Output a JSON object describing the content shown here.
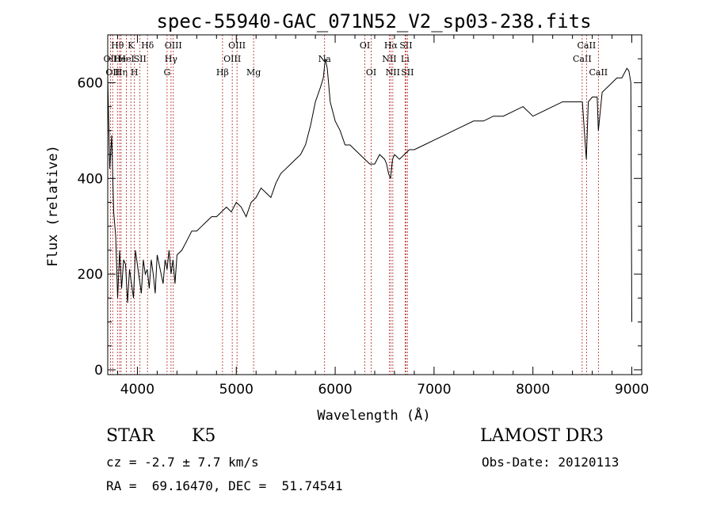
{
  "chart_data": {
    "type": "line",
    "title": "spec-55940-GAC_071N52_V2_sp03-238.fits",
    "xlabel": "Wavelength (Å)",
    "ylabel": "Flux (relative)",
    "xlim": [
      3700,
      9100
    ],
    "ylim": [
      -10,
      700
    ],
    "xticks": [
      4000,
      5000,
      6000,
      7000,
      8000,
      9000
    ],
    "yticks": [
      0,
      200,
      400,
      600
    ],
    "series": [
      {
        "name": "spectrum",
        "x": [
          3700,
          3720,
          3740,
          3760,
          3780,
          3800,
          3820,
          3840,
          3860,
          3880,
          3900,
          3920,
          3940,
          3960,
          3980,
          4000,
          4020,
          4040,
          4060,
          4080,
          4100,
          4120,
          4140,
          4160,
          4180,
          4200,
          4220,
          4240,
          4260,
          4280,
          4300,
          4320,
          4340,
          4360,
          4380,
          4400,
          4450,
          4500,
          4550,
          4600,
          4650,
          4700,
          4750,
          4800,
          4850,
          4900,
          4950,
          5000,
          5050,
          5100,
          5150,
          5200,
          5250,
          5300,
          5350,
          5400,
          5450,
          5500,
          5550,
          5600,
          5650,
          5700,
          5750,
          5800,
          5850,
          5880,
          5900,
          5920,
          5950,
          6000,
          6050,
          6100,
          6150,
          6200,
          6250,
          6300,
          6350,
          6400,
          6450,
          6500,
          6520,
          6540,
          6560,
          6580,
          6600,
          6650,
          6700,
          6750,
          6800,
          6900,
          7000,
          7100,
          7200,
          7300,
          7400,
          7500,
          7600,
          7700,
          7800,
          7900,
          8000,
          8100,
          8200,
          8300,
          8400,
          8500,
          8540,
          8560,
          8600,
          8650,
          8662,
          8700,
          8750,
          8800,
          8850,
          8900,
          8950,
          8970,
          8990,
          9000
        ],
        "y": [
          610,
          420,
          490,
          330,
          280,
          150,
          250,
          170,
          230,
          220,
          140,
          210,
          180,
          150,
          250,
          220,
          190,
          160,
          230,
          200,
          210,
          170,
          230,
          200,
          160,
          240,
          220,
          200,
          180,
          230,
          210,
          250,
          200,
          230,
          180,
          240,
          250,
          270,
          290,
          290,
          300,
          310,
          320,
          320,
          330,
          340,
          330,
          350,
          340,
          320,
          350,
          360,
          380,
          370,
          360,
          390,
          410,
          420,
          430,
          440,
          450,
          470,
          510,
          560,
          590,
          610,
          650,
          630,
          560,
          520,
          500,
          470,
          470,
          460,
          450,
          440,
          430,
          430,
          450,
          440,
          430,
          410,
          400,
          440,
          450,
          440,
          450,
          460,
          460,
          470,
          480,
          490,
          500,
          510,
          520,
          520,
          530,
          530,
          540,
          550,
          530,
          540,
          550,
          560,
          560,
          560,
          440,
          560,
          570,
          570,
          500,
          580,
          590,
          600,
          610,
          610,
          630,
          625,
          600,
          100
        ]
      }
    ],
    "lines": [
      {
        "wave": 3727,
        "label": "OII",
        "row": 2
      },
      {
        "wave": 3750,
        "label": "OII",
        "row": 3
      },
      {
        "wave": 3798,
        "label": "Hθ",
        "row": 1
      },
      {
        "wave": 3820,
        "label": "He",
        "row": 2
      },
      {
        "wave": 3835,
        "label": "Hη",
        "row": 3
      },
      {
        "wave": 3889,
        "label": "HeI",
        "row": 2
      },
      {
        "wave": 3934,
        "label": "K",
        "row": 1
      },
      {
        "wave": 3970,
        "label": "H",
        "row": 3
      },
      {
        "wave": 4026,
        "label": "SII",
        "row": 2
      },
      {
        "wave": 4102,
        "label": "Hδ",
        "row": 1
      },
      {
        "wave": 4300,
        "label": "G",
        "row": 3
      },
      {
        "wave": 4340,
        "label": "Hγ",
        "row": 2
      },
      {
        "wave": 4363,
        "label": "OIII",
        "row": 1
      },
      {
        "wave": 4861,
        "label": "Hβ",
        "row": 3
      },
      {
        "wave": 4959,
        "label": "OIII",
        "row": 2
      },
      {
        "wave": 5007,
        "label": "OIII",
        "row": 1
      },
      {
        "wave": 5175,
        "label": "Mg",
        "row": 3
      },
      {
        "wave": 5893,
        "label": "Na",
        "row": 2
      },
      {
        "wave": 6300,
        "label": "OI",
        "row": 1
      },
      {
        "wave": 6364,
        "label": "OI",
        "row": 3
      },
      {
        "wave": 6548,
        "label": "NII",
        "row": 2
      },
      {
        "wave": 6563,
        "label": "Hα",
        "row": 1
      },
      {
        "wave": 6583,
        "label": "NII",
        "row": 3
      },
      {
        "wave": 6707,
        "label": "Li",
        "row": 2
      },
      {
        "wave": 6716,
        "label": "SII",
        "row": 1
      },
      {
        "wave": 6731,
        "label": "SII",
        "row": 3
      },
      {
        "wave": 8498,
        "label": "CaII",
        "row": 2
      },
      {
        "wave": 8542,
        "label": "CaII",
        "row": 1
      },
      {
        "wave": 8662,
        "label": "CaII",
        "row": 3
      }
    ]
  },
  "info": {
    "class": "STAR",
    "subclass": "K5",
    "survey": "LAMOST DR3",
    "cz": "cz = -2.7 ± 7.7 km/s",
    "obsdate": "Obs-Date: 20120113",
    "radec": "RA =  69.16470, DEC =  51.74541"
  }
}
